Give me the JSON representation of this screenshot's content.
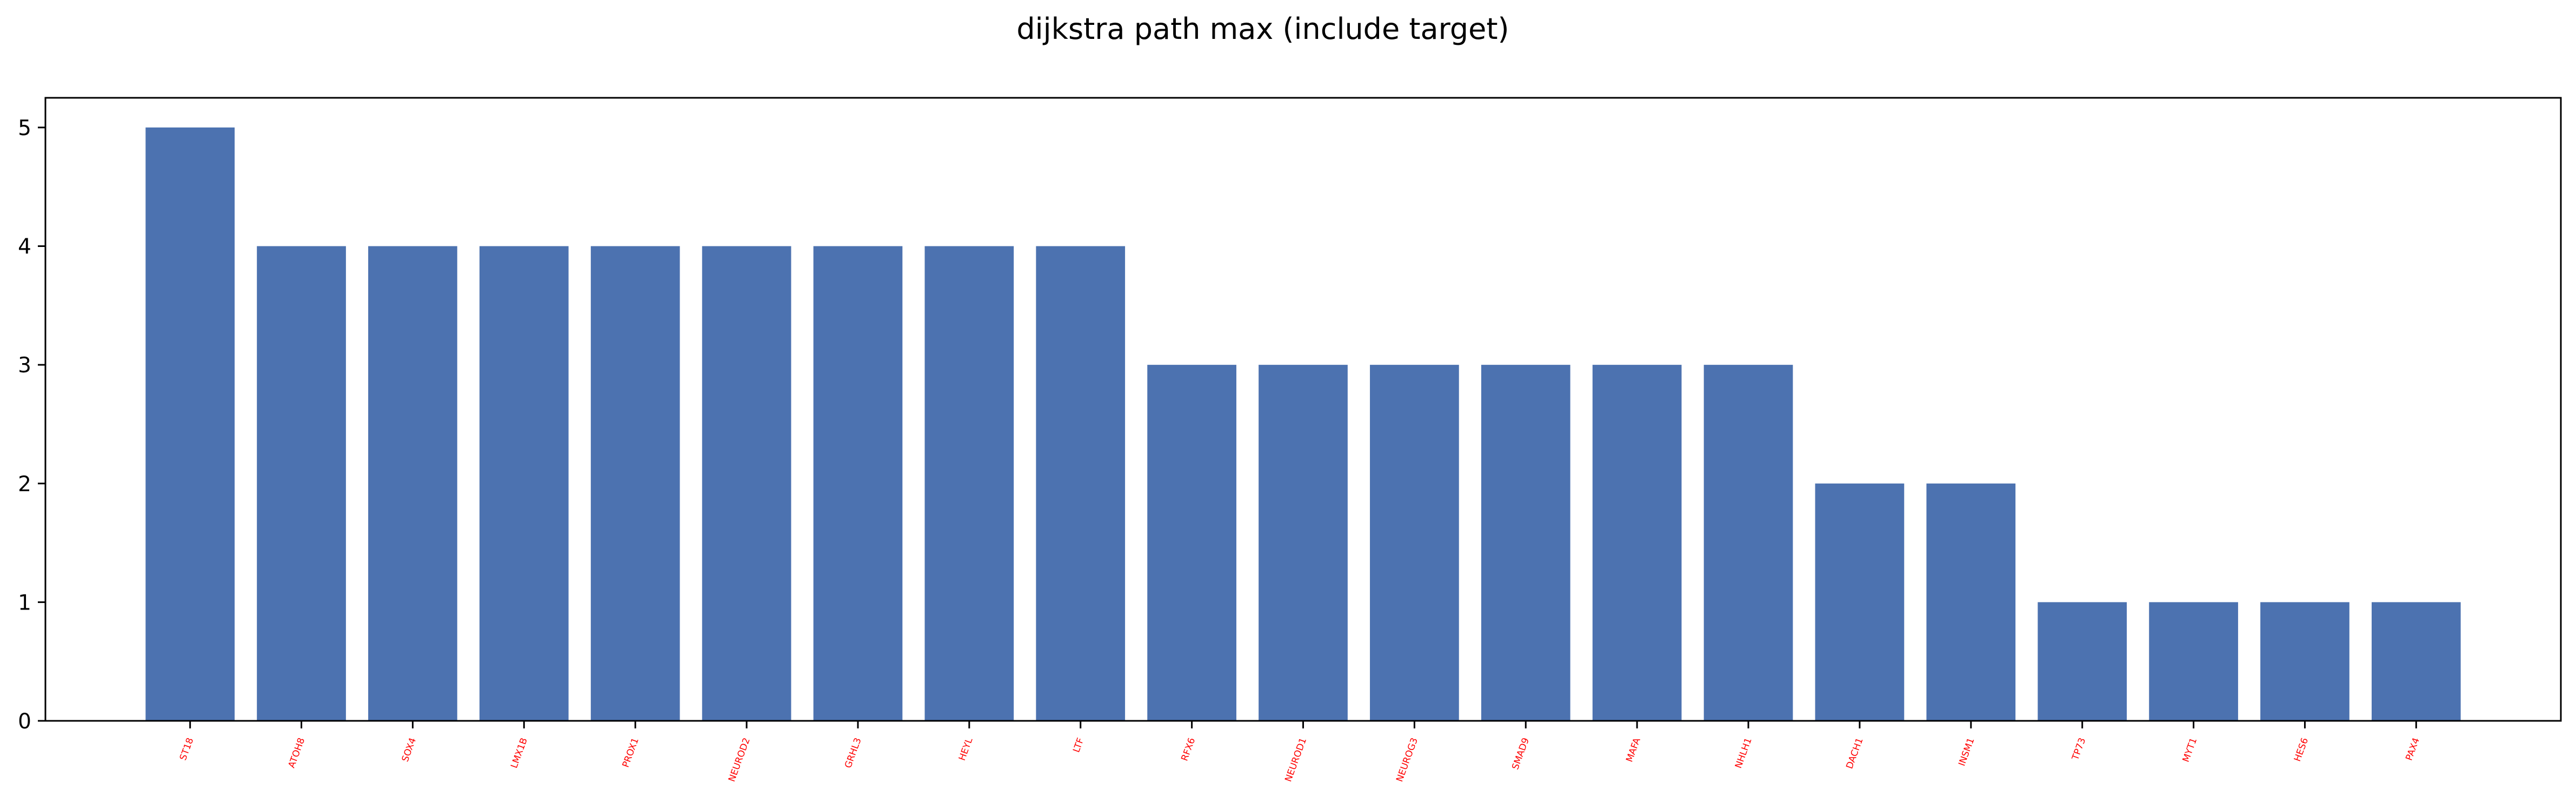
{
  "chart_data": {
    "type": "bar",
    "title": "dijkstra path max (include target)",
    "xlabel": "",
    "ylabel": "",
    "categories": [
      "ST18",
      "ATOH8",
      "SOX4",
      "LMX1B",
      "PROX1",
      "NEUROD2",
      "GRHL3",
      "HEYL",
      "LTF",
      "RFX6",
      "NEUROD1",
      "NEUROG3",
      "SMAD9",
      "MAFA",
      "NHLH1",
      "DACH1",
      "INSM1",
      "TP73",
      "MYT1",
      "HES6",
      "PAX4"
    ],
    "values": [
      5,
      4,
      4,
      4,
      4,
      4,
      4,
      4,
      4,
      3,
      3,
      3,
      3,
      3,
      3,
      2,
      2,
      1,
      1,
      1,
      1
    ],
    "yticks": [
      "0",
      "1",
      "2",
      "3",
      "4",
      "5"
    ],
    "ylim": [
      0,
      5.25
    ],
    "grid": false,
    "legend": "none",
    "colors": {
      "bar": "#4c72b0",
      "xtick_label": "#ff0000",
      "axis": "#000000"
    }
  }
}
